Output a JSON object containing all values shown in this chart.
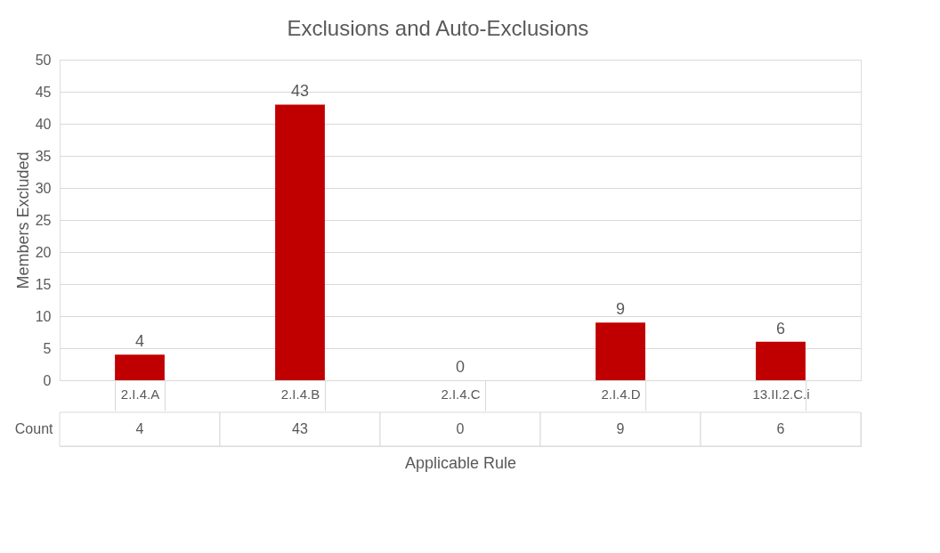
{
  "chart_data": {
    "type": "bar",
    "title": "Exclusions and Auto-Exclusions",
    "xlabel": "Applicable Rule",
    "ylabel": "Members Excluded",
    "categories": [
      "2.I.4.A",
      "2.I.4.B",
      "2.I.4.C",
      "2.I.4.D",
      "13.II.2.C.i"
    ],
    "series": [
      {
        "name": "Count",
        "color": "#c00000",
        "values": [
          4,
          43,
          0,
          9,
          6
        ],
        "value_labels": [
          "4",
          "43",
          "0",
          "9",
          "6"
        ]
      }
    ],
    "ylim": [
      0,
      50
    ],
    "yticks": [
      0,
      5,
      10,
      15,
      20,
      25,
      30,
      35,
      40,
      45,
      50
    ],
    "grid": "y",
    "data_labels": true
  }
}
